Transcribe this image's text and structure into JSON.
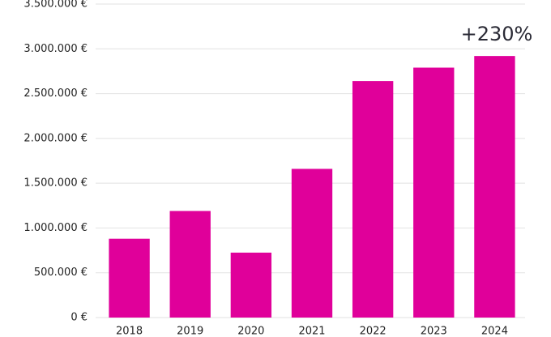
{
  "chart_data": {
    "type": "bar",
    "annotation": "+230%",
    "categories": [
      "2018",
      "2019",
      "2020",
      "2021",
      "2022",
      "2023",
      "2024"
    ],
    "values": [
      880000,
      1190000,
      725000,
      1660000,
      2640000,
      2790000,
      2920000
    ],
    "color": "#e0009a",
    "ylim": [
      0,
      3500000
    ],
    "yticks": [
      {
        "value": 0,
        "label": "0 €"
      },
      {
        "value": 500000,
        "label": "500.000 €"
      },
      {
        "value": 1000000,
        "label": "1.000.000 €"
      },
      {
        "value": 1500000,
        "label": "1.500.000 €"
      },
      {
        "value": 2000000,
        "label": "2.000.000 €"
      },
      {
        "value": 2500000,
        "label": "2.500.000 €"
      },
      {
        "value": 3000000,
        "label": "3.000.000 €"
      },
      {
        "value": 3500000,
        "label": "3.500.000 €"
      }
    ],
    "grid": true
  }
}
